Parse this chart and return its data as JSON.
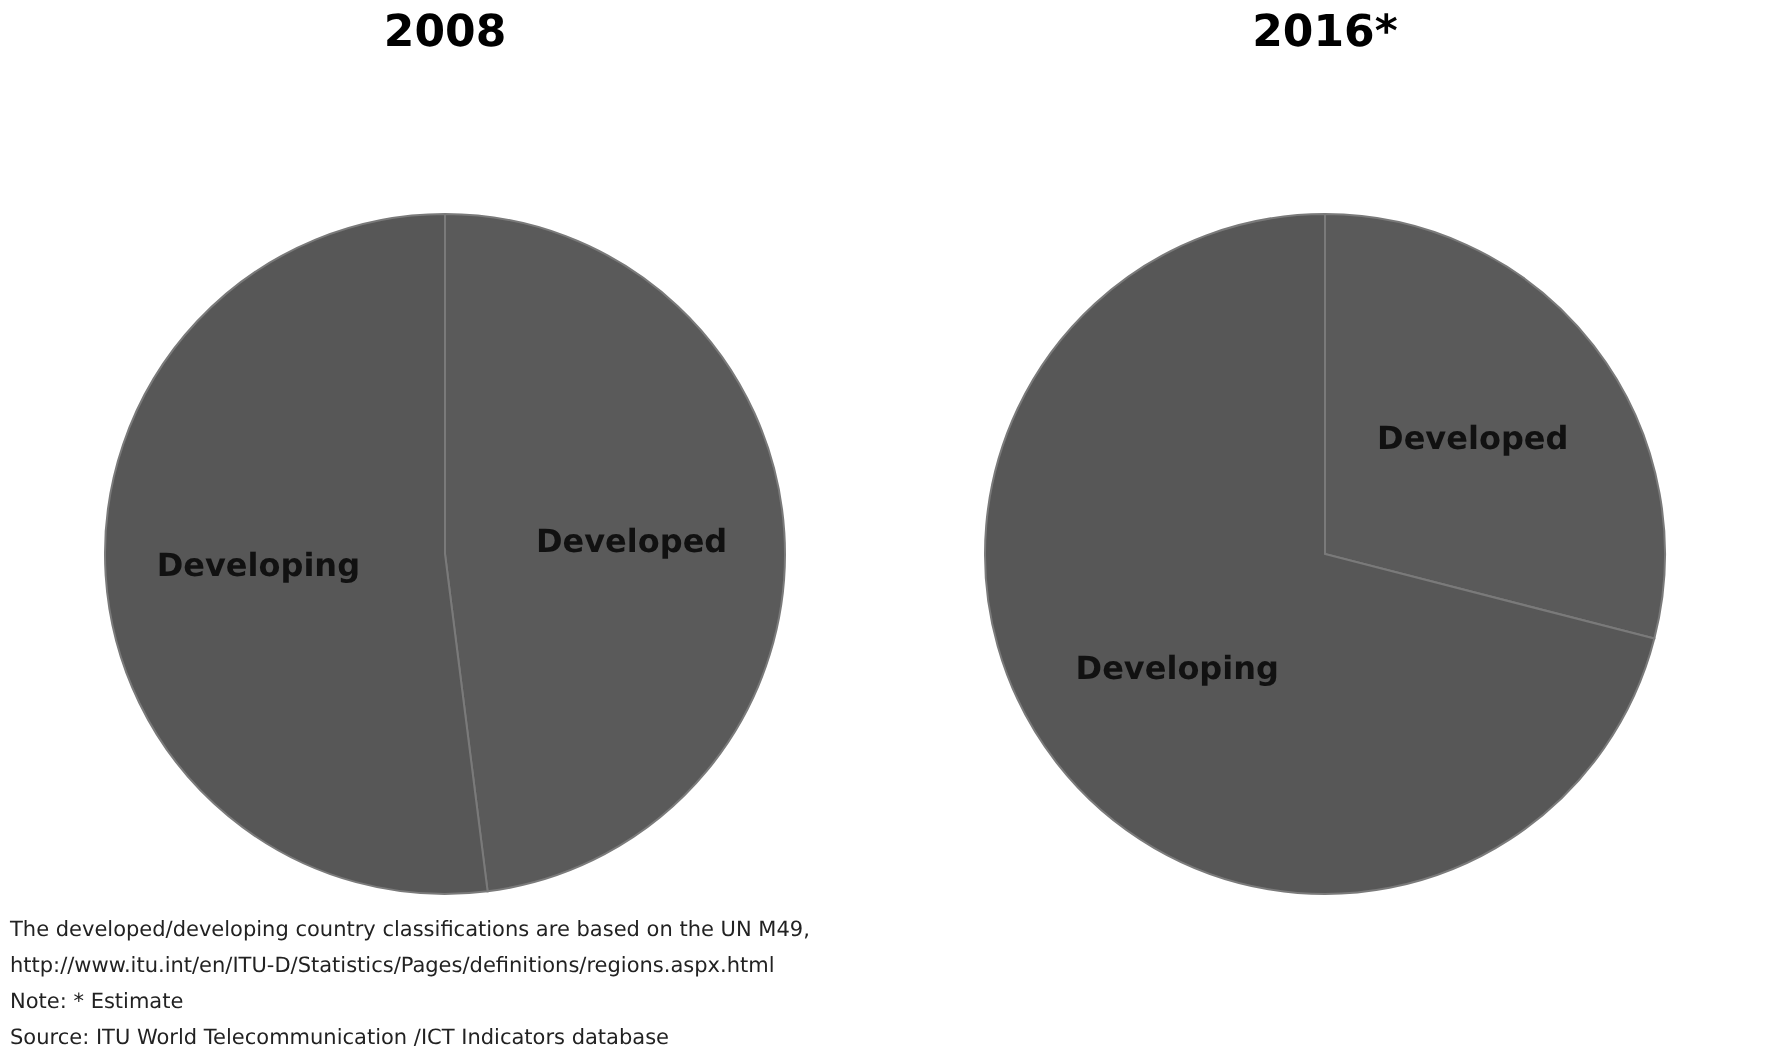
{
  "chart_data": [
    {
      "type": "pie",
      "title": "2008",
      "categories": [
        "Developed",
        "Developing"
      ],
      "values": [
        48,
        52
      ],
      "colors": [
        "#5a5a5a",
        "#575757"
      ],
      "legend": false,
      "annotations": [
        "The developed/developing country classifications are based on the UN M49,",
        "http://www.itu.int/en/ITU-D/Statistics/Pages/definitions/regions.aspx.html",
        "Note: * Estimate",
        "Source:  ITU World Telecommunication /ICT Indicators database"
      ]
    },
    {
      "type": "pie",
      "title": "2016*",
      "categories": [
        "Developed",
        "Developing"
      ],
      "values": [
        29,
        71
      ],
      "colors": [
        "#5a5a5a",
        "#575757"
      ],
      "legend": false
    }
  ]
}
